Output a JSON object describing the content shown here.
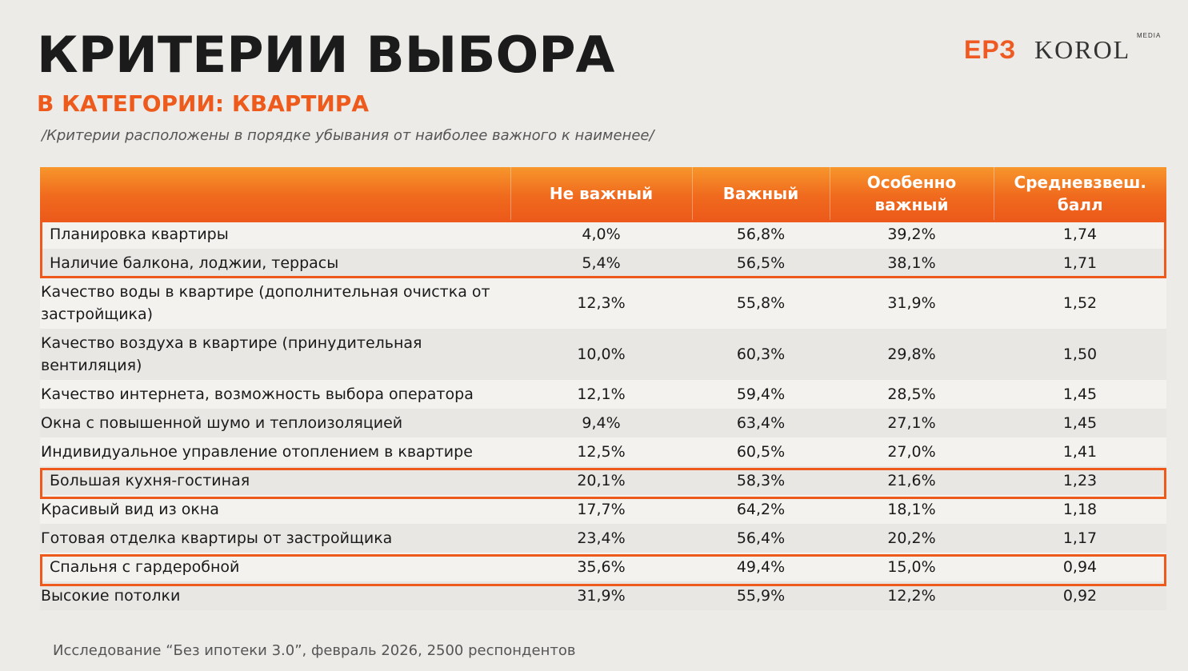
{
  "title": "КРИТЕРИИ ВЫБОРА",
  "subtitle": "В КАТЕГОРИИ: КВАРТИРА",
  "note": "/Критерии расположены в порядке убывания от наиболее важного к наименее/",
  "logos": {
    "erz": "ЕРЗ",
    "korol": "KOROL",
    "media": "MEDIA"
  },
  "table": {
    "headers": [
      "",
      "Не важный",
      "Важный",
      "Особенно важный",
      "Средневзвеш. балл"
    ],
    "rows": [
      [
        "Планировка квартиры",
        "4,0%",
        "56,8%",
        "39,2%",
        "1,74"
      ],
      [
        "Наличие балкона, лоджии, террасы",
        "5,4%",
        "56,5%",
        "38,1%",
        "1,71"
      ],
      [
        "Качество воды в квартире (дополнительная очистка от застройщика)",
        "12,3%",
        "55,8%",
        "31,9%",
        "1,52"
      ],
      [
        "Качество воздуха в квартире (принудительная вентиляция)",
        "10,0%",
        "60,3%",
        "29,8%",
        "1,50"
      ],
      [
        "Качество интернета, возможность выбора оператора",
        "12,1%",
        "59,4%",
        "28,5%",
        "1,45"
      ],
      [
        "Окна с повышенной шумо и теплоизоляцией",
        "9,4%",
        "63,4%",
        "27,1%",
        "1,45"
      ],
      [
        "Индивидуальное управление отоплением в квартире",
        "12,5%",
        "60,5%",
        "27,0%",
        "1,41"
      ],
      [
        "Большая кухня-гостиная",
        "20,1%",
        "58,3%",
        "21,6%",
        "1,23"
      ],
      [
        "Красивый вид из окна",
        "17,7%",
        "64,2%",
        "18,1%",
        "1,18"
      ],
      [
        "Готовая отделка квартиры от застройщика",
        "23,4%",
        "56,4%",
        "20,2%",
        "1,17"
      ],
      [
        "Спальня с гардеробной",
        "35,6%",
        "49,4%",
        "15,0%",
        "0,94"
      ],
      [
        "Высокие потолки",
        "31,9%",
        "55,9%",
        "12,2%",
        "0,92"
      ]
    ]
  },
  "accent_color": "#ee5a1c",
  "footer": "Исследование “Без ипотеки 3.0”, февраль 2026, 2500 респондентов"
}
